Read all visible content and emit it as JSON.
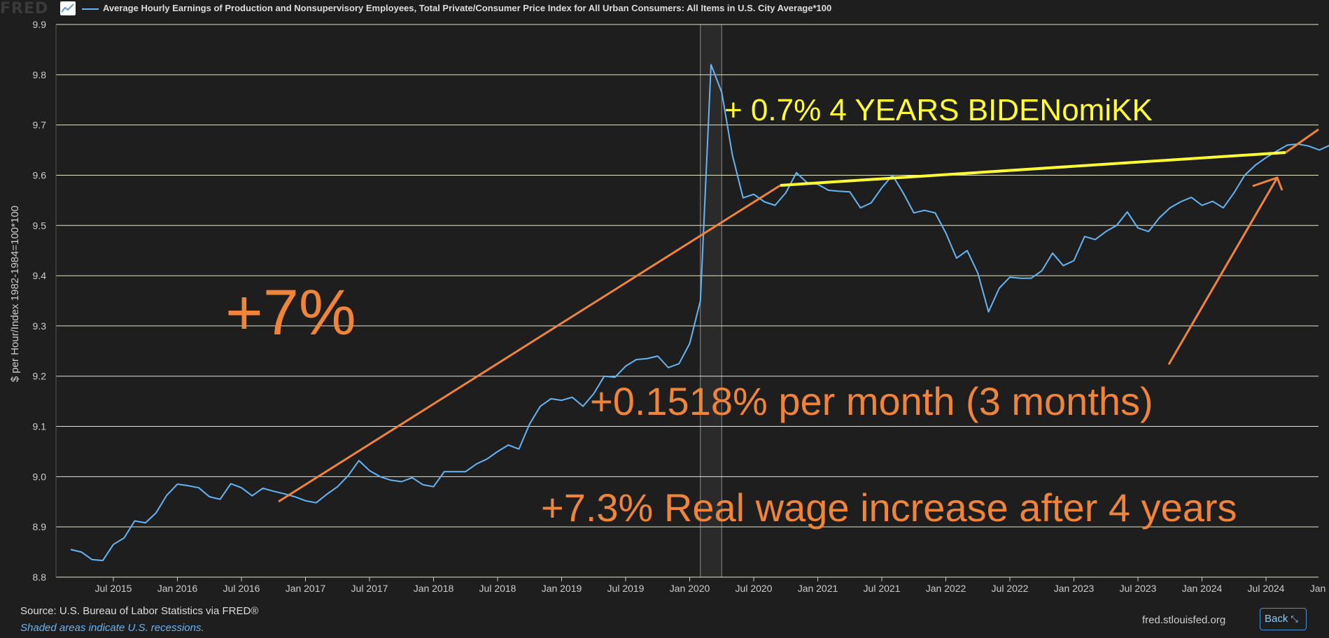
{
  "header": {
    "logo": "FRED",
    "legend": "Average Hourly Earnings of Production and Nonsupervisory Employees, Total Private/Consumer Price Index for All Urban Consumers: All Items in U.S. City Average*100"
  },
  "chart_data": {
    "type": "line",
    "ylabel": "$ per Hour/Index 1982-1984=100*100",
    "ylim": [
      8.8,
      9.9
    ],
    "y_ticks": [
      "8.8",
      "8.9",
      "9.0",
      "9.1",
      "9.2",
      "9.3",
      "9.4",
      "9.5",
      "9.6",
      "9.7",
      "9.8",
      "9.9"
    ],
    "x_ticks": [
      "Jul 2015",
      "Jan 2016",
      "Jul 2016",
      "Jan 2017",
      "Jul 2017",
      "Jan 2018",
      "Jul 2018",
      "Jan 2019",
      "Jul 2019",
      "Jan 2020",
      "Jul 2020",
      "Jan 2021",
      "Jul 2021",
      "Jan 2022",
      "Jul 2022",
      "Jan 2023",
      "Jul 2023",
      "Jan 2024",
      "Jul 2024",
      "Jan 2025"
    ],
    "x_start": "2015-03",
    "recession": {
      "start": "2020-02",
      "end": "2020-04"
    },
    "grid": true,
    "series": [
      {
        "color": "#64b5f6",
        "values": [
          8.855,
          8.85,
          8.835,
          8.833,
          8.865,
          8.878,
          8.912,
          8.908,
          8.928,
          8.963,
          8.985,
          8.982,
          8.978,
          8.96,
          8.955,
          8.986,
          8.978,
          8.962,
          8.977,
          8.971,
          8.966,
          8.96,
          8.952,
          8.948,
          8.965,
          8.98,
          9.002,
          9.032,
          9.012,
          9.0,
          8.993,
          8.99,
          8.998,
          8.984,
          8.98,
          9.01,
          9.01,
          9.01,
          9.025,
          9.035,
          9.05,
          9.063,
          9.055,
          9.105,
          9.14,
          9.155,
          9.152,
          9.158,
          9.14,
          9.165,
          9.2,
          9.198,
          9.22,
          9.233,
          9.235,
          9.24,
          9.217,
          9.225,
          9.265,
          9.35,
          9.82,
          9.765,
          9.64,
          9.555,
          9.562,
          9.547,
          9.54,
          9.565,
          9.605,
          9.585,
          9.582,
          9.57,
          9.568,
          9.567,
          9.535,
          9.545,
          9.575,
          9.6,
          9.565,
          9.525,
          9.53,
          9.525,
          9.485,
          9.435,
          9.45,
          9.405,
          9.328,
          9.375,
          9.397,
          9.395,
          9.395,
          9.41,
          9.445,
          9.42,
          9.43,
          9.478,
          9.472,
          9.488,
          9.5,
          9.527,
          9.495,
          9.488,
          9.515,
          9.535,
          9.547,
          9.556,
          9.54,
          9.548,
          9.535,
          9.565,
          9.6,
          9.62,
          9.635,
          9.648,
          9.66,
          9.662,
          9.658,
          9.65,
          9.66
        ]
      }
    ]
  },
  "annotations": {
    "yellow_text": "+ 0.7% 4 YEARS BIDENomiKK",
    "big_pct": "+7%",
    "per_month": "+0.1518% per month (3 months)",
    "real_wage": "+7.3% Real wage increase after 4 years",
    "orange_color": "#f0853a",
    "yellow_color": "#ffff33"
  },
  "footer": {
    "source": "Source: U.S. Bureau of Labor Statistics via FRED®",
    "shaded": "Shaded areas indicate U.S. recessions.",
    "site": "fred.stlouisfed.org",
    "back": "Back"
  }
}
